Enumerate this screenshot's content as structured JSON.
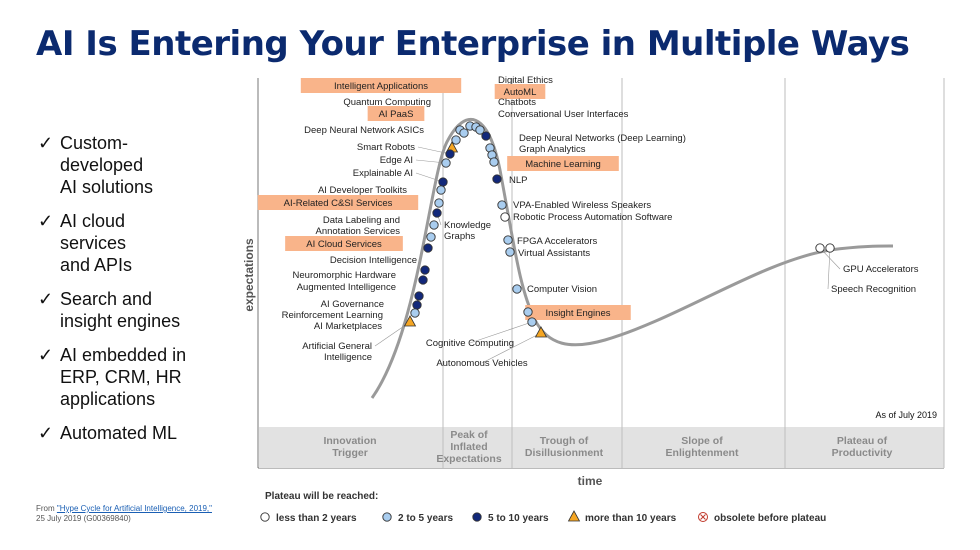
{
  "title": "AI Is Entering Your Enterprise in Multiple Ways",
  "bullets": [
    {
      "lines": [
        "Custom-",
        "developed",
        "AI solutions"
      ]
    },
    {
      "lines": [
        "AI cloud",
        "services",
        "and APIs"
      ]
    },
    {
      "lines": [
        "Search and",
        "insight engines"
      ]
    },
    {
      "lines": [
        "AI embedded in",
        "ERP, CRM, HR",
        "applications"
      ]
    },
    {
      "lines": [
        "Automated ML"
      ]
    }
  ],
  "source": {
    "prefix": "From ",
    "link": "\"Hype Cycle for Artificial Intelligence, 2019,\"",
    "date": "25 July 2019 (G00369840)"
  },
  "colors": {
    "title": "#0b2a6f",
    "highlight": "#f9b48a",
    "curve": "#9a9a9a",
    "light_blue": "#a9cdef",
    "dark_blue": "#12287a",
    "orange": "#f5a623",
    "phase_band": "#e2e2e2"
  },
  "chart_data": {
    "type": "scatter",
    "subtype": "hype-cycle",
    "xlabel": "time",
    "ylabel": "expectations",
    "as_of": "As of July 2019",
    "phases": [
      "Innovation Trigger",
      "Peak of Inflated Expectations",
      "Trough of Disillusionment",
      "Slope of Enlightenment",
      "Plateau of Productivity"
    ],
    "legend_title": "Plateau will be reached:",
    "legend": [
      {
        "key": "lt2",
        "label": "less than 2 years",
        "marker": "circle-white"
      },
      {
        "key": "2to5",
        "label": "2 to 5 years",
        "marker": "circle-light-blue"
      },
      {
        "key": "5to10",
        "label": "5 to 10 years",
        "marker": "circle-dark-blue"
      },
      {
        "key": "gt10",
        "label": "more than 10 years",
        "marker": "triangle-orange"
      },
      {
        "key": "obsolete",
        "label": "obsolete before plateau",
        "marker": "circle-x"
      }
    ],
    "technologies": [
      {
        "name": "Intelligent Applications",
        "phase": "Peak of Inflated Expectations",
        "plateau": "2to5",
        "highlight": true
      },
      {
        "name": "Quantum Computing",
        "phase": "Peak of Inflated Expectations",
        "plateau": "gt10",
        "highlight": false
      },
      {
        "name": "AI PaaS",
        "phase": "Peak of Inflated Expectations",
        "plateau": "2to5",
        "highlight": true
      },
      {
        "name": "Deep Neural Network ASICs",
        "phase": "Peak of Inflated Expectations",
        "plateau": "2to5",
        "highlight": false
      },
      {
        "name": "Smart Robots",
        "phase": "Peak of Inflated Expectations",
        "plateau": "5to10",
        "highlight": false
      },
      {
        "name": "Edge AI",
        "phase": "Peak of Inflated Expectations",
        "plateau": "2to5",
        "highlight": false
      },
      {
        "name": "Explainable AI",
        "phase": "Innovation Trigger",
        "plateau": "5to10",
        "highlight": false
      },
      {
        "name": "AI Developer Toolkits",
        "phase": "Innovation Trigger",
        "plateau": "2to5",
        "highlight": false
      },
      {
        "name": "AI-Related C&SI Services",
        "phase": "Innovation Trigger",
        "plateau": "2to5",
        "highlight": true
      },
      {
        "name": "Knowledge Graphs",
        "phase": "Innovation Trigger",
        "plateau": "5to10",
        "highlight": false
      },
      {
        "name": "Data Labeling and Annotation Services",
        "phase": "Innovation Trigger",
        "plateau": "2to5",
        "highlight": false
      },
      {
        "name": "AI Cloud Services",
        "phase": "Innovation Trigger",
        "plateau": "2to5",
        "highlight": true
      },
      {
        "name": "Decision Intelligence",
        "phase": "Innovation Trigger",
        "plateau": "5to10",
        "highlight": false
      },
      {
        "name": "Neuromorphic Hardware",
        "phase": "Innovation Trigger",
        "plateau": "5to10",
        "highlight": false
      },
      {
        "name": "Augmented Intelligence",
        "phase": "Innovation Trigger",
        "plateau": "5to10",
        "highlight": false
      },
      {
        "name": "AI Governance",
        "phase": "Innovation Trigger",
        "plateau": "5to10",
        "highlight": false
      },
      {
        "name": "Reinforcement Learning",
        "phase": "Innovation Trigger",
        "plateau": "5to10",
        "highlight": false
      },
      {
        "name": "AI Marketplaces",
        "phase": "Innovation Trigger",
        "plateau": "2to5",
        "highlight": false
      },
      {
        "name": "Artificial General Intelligence",
        "phase": "Innovation Trigger",
        "plateau": "gt10",
        "highlight": false
      },
      {
        "name": "Digital Ethics",
        "phase": "Peak of Inflated Expectations",
        "plateau": "2to5",
        "highlight": false
      },
      {
        "name": "AutoML",
        "phase": "Peak of Inflated Expectations",
        "plateau": "2to5",
        "highlight": true
      },
      {
        "name": "Chatbots",
        "phase": "Peak of Inflated Expectations",
        "plateau": "2to5",
        "highlight": false
      },
      {
        "name": "Conversational User Interfaces",
        "phase": "Peak of Inflated Expectations",
        "plateau": "5to10",
        "highlight": false
      },
      {
        "name": "Deep Neural Networks (Deep Learning)",
        "phase": "Peak of Inflated Expectations",
        "plateau": "2to5",
        "highlight": false
      },
      {
        "name": "Graph Analytics",
        "phase": "Peak of Inflated Expectations",
        "plateau": "2to5",
        "highlight": false
      },
      {
        "name": "Machine Learning",
        "phase": "Peak of Inflated Expectations",
        "plateau": "2to5",
        "highlight": true
      },
      {
        "name": "NLP",
        "phase": "Trough of Disillusionment",
        "plateau": "5to10",
        "highlight": false
      },
      {
        "name": "VPA-Enabled Wireless Speakers",
        "phase": "Trough of Disillusionment",
        "plateau": "2to5",
        "highlight": false
      },
      {
        "name": "Robotic Process Automation Software",
        "phase": "Trough of Disillusionment",
        "plateau": "lt2",
        "highlight": false
      },
      {
        "name": "FPGA Accelerators",
        "phase": "Trough of Disillusionment",
        "plateau": "2to5",
        "highlight": false
      },
      {
        "name": "Virtual Assistants",
        "phase": "Trough of Disillusionment",
        "plateau": "2to5",
        "highlight": false
      },
      {
        "name": "Computer Vision",
        "phase": "Trough of Disillusionment",
        "plateau": "2to5",
        "highlight": false
      },
      {
        "name": "Insight Engines",
        "phase": "Trough of Disillusionment",
        "plateau": "2to5",
        "highlight": true
      },
      {
        "name": "Cognitive Computing",
        "phase": "Trough of Disillusionment",
        "plateau": "2to5",
        "highlight": false
      },
      {
        "name": "Autonomous Vehicles",
        "phase": "Trough of Disillusionment",
        "plateau": "gt10",
        "highlight": false
      },
      {
        "name": "GPU Accelerators",
        "phase": "Plateau of Productivity",
        "plateau": "lt2",
        "highlight": false
      },
      {
        "name": "Speech Recognition",
        "phase": "Plateau of Productivity",
        "plateau": "lt2",
        "highlight": false
      }
    ]
  }
}
